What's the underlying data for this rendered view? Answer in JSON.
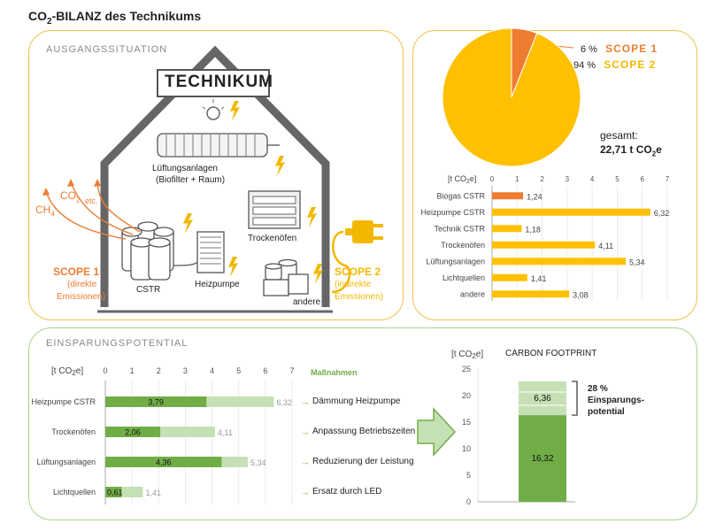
{
  "title": {
    "main": "CO",
    "sub": "2",
    "rest": "-BILANZ  des Technikums"
  },
  "ausgang": {
    "heading": "AUSGANGSSITUATION",
    "house_label": "TECHNIKUM",
    "lueftung": "Lüftungsanlagen",
    "lueftung_sub": "(Biofilter + Raum)",
    "trockenoefen": "Trockenöfen",
    "cstr": "CSTR",
    "heizpumpe": "Heizpumpe",
    "andere": "andere",
    "co2": "CO",
    "co2_sub": "2",
    "ch4": "CH",
    "ch4_sub": "4",
    "etc": "etc.",
    "scope1": "SCOPE 1",
    "scope1_desc1": "(direkte",
    "scope1_desc2": "Emissionen)",
    "scope2": "SCOPE 2",
    "scope2_desc1": "(indirekte",
    "scope2_desc2": "Emissionen)"
  },
  "scope_pie": {
    "s1_pct": "6 %",
    "s1_label": "SCOPE 1",
    "s2_pct": "94 %",
    "s2_label": "SCOPE 2",
    "gesamt_label": "gesamt:",
    "gesamt_value": "22,71 t CO",
    "gesamt_sub": "2",
    "gesamt_unit": "e"
  },
  "einsparung": {
    "heading": "EINSPARUNGSPOTENTIAL",
    "massnahmen_label": "Maßnahmen",
    "massnahmen": [
      "Dämmung Heizpumpe",
      "Anpassung Betriebszeiten",
      "Reduzierung der Leistung",
      "Ersatz durch LED"
    ],
    "cf_title": "CARBON FOOTPRINT",
    "pct_label": "28 %",
    "pct_desc1": "Einsparungs-",
    "pct_desc2": "potential"
  },
  "colors": {
    "orange": "#ed7d31",
    "yellow": "#ffc000",
    "dark_green": "#70ad47",
    "light_green": "#c5e0b4",
    "panel_yellow": "#e8c44a",
    "panel_green": "#a9d18e"
  },
  "chart_data": [
    {
      "type": "pie",
      "slices": [
        {
          "name": "SCOPE 1",
          "value": 6
        },
        {
          "name": "SCOPE 2",
          "value": 94
        }
      ]
    },
    {
      "type": "bar",
      "orientation": "horizontal",
      "xlabel": "[t CO2e]",
      "xlim": [
        0,
        7
      ],
      "ticks": [
        0,
        1,
        2,
        3,
        4,
        5,
        6,
        7
      ],
      "categories": [
        "Biogas CSTR",
        "Heizpumpe CSTR",
        "Technik CSTR",
        "Trockenöfen",
        "Lüftungsanlagen",
        "Lichtquellen",
        "andere"
      ],
      "values": [
        1.24,
        6.32,
        1.18,
        4.11,
        5.34,
        1.41,
        3.08
      ],
      "labels": [
        "1,24",
        "6,32",
        "1,18",
        "4,11",
        "5,34",
        "1,41",
        "3,08"
      ]
    },
    {
      "type": "bar",
      "orientation": "horizontal",
      "xlabel": "[t CO2e]",
      "xlim": [
        0,
        7
      ],
      "ticks": [
        0,
        1,
        2,
        3,
        4,
        5,
        6,
        7
      ],
      "categories": [
        "Heizpumpe CSTR",
        "Trockenöfen",
        "Lüftungsanlagen",
        "Lichtquellen"
      ],
      "series": [
        {
          "values": [
            3.79,
            2.06,
            4.36,
            0.61
          ],
          "labels": [
            "3,79",
            "2,06",
            "4,36",
            "0,61"
          ]
        },
        {
          "values": [
            6.32,
            4.11,
            5.34,
            1.41
          ],
          "labels": [
            "6,32",
            "4,11",
            "5,34",
            "1,41"
          ]
        }
      ]
    },
    {
      "type": "bar",
      "orientation": "vertical",
      "stacked": true,
      "title": "CARBON FOOTPRINT",
      "ylabel": "[t CO2e]",
      "ylim": [
        0,
        25
      ],
      "ticks": [
        0,
        5,
        10,
        15,
        20,
        25
      ],
      "series": [
        {
          "value": 16.32,
          "label": "16,32"
        },
        {
          "value": 6.36,
          "label": "6,36"
        }
      ]
    }
  ]
}
